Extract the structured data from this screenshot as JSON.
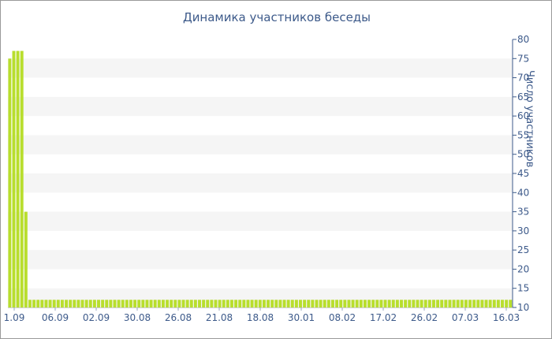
{
  "chart_data": {
    "type": "bar",
    "title": "Динамика участников беседы",
    "xlabel": "",
    "ylabel": "Число участников",
    "ylim": [
      10,
      80
    ],
    "y_ticks": [
      10,
      15,
      20,
      25,
      30,
      35,
      40,
      45,
      50,
      55,
      60,
      65,
      70,
      75,
      80
    ],
    "x_tick_labels": [
      "1.09",
      "06.09",
      "02.09",
      "30.08",
      "26.08",
      "21.08",
      "18.08",
      "30.01",
      "08.02",
      "17.02",
      "26.02",
      "07.03",
      "16.03"
    ],
    "grid": "horizontal bands",
    "bar_color": "#b8de2d",
    "values": [
      75,
      77,
      77,
      77,
      35,
      12,
      12,
      12,
      12,
      12,
      12,
      12,
      12,
      12,
      12,
      12,
      12,
      12,
      12,
      12,
      12,
      12,
      12,
      12,
      12,
      12,
      12,
      12,
      12,
      12,
      12,
      12,
      12,
      12,
      12,
      12,
      12,
      12,
      12,
      12,
      12,
      12,
      12,
      12,
      12,
      12,
      12,
      12,
      12,
      12,
      12,
      12,
      12,
      12,
      12,
      12,
      12,
      12,
      12,
      12,
      12,
      12,
      12,
      12,
      12,
      12,
      12,
      12,
      12,
      12,
      12,
      12,
      12,
      12,
      12,
      12,
      12,
      12,
      12,
      12,
      12,
      12,
      12,
      12,
      12,
      12,
      12,
      12,
      12,
      12,
      12,
      12,
      12,
      12,
      12,
      12,
      12,
      12,
      12,
      12,
      12,
      12,
      12,
      12,
      12,
      12,
      12,
      12,
      12,
      12,
      12,
      12,
      12,
      12,
      12,
      12,
      12,
      12,
      12,
      12,
      12,
      12,
      12,
      12,
      12
    ]
  }
}
